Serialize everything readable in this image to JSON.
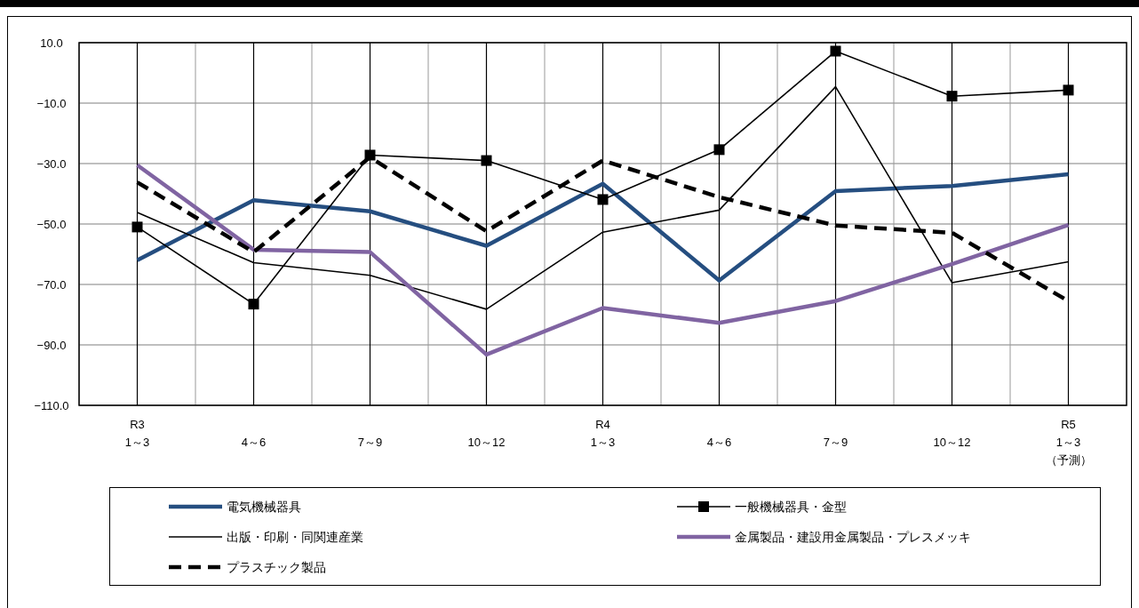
{
  "chart_data": {
    "type": "line",
    "categories": [
      "R3\n1～3",
      "4～6",
      "7～9",
      "10～12",
      "R4\n1～3",
      "4～6",
      "7～9",
      "10～12",
      "R5\n1～3\n（予測）"
    ],
    "ylim": [
      -110,
      10
    ],
    "yticks": [
      {
        "value": 10,
        "label": "10.0"
      },
      {
        "value": -10,
        "label": "−10.0"
      },
      {
        "value": -30,
        "label": "−30.0"
      },
      {
        "value": -50,
        "label": "−50.0"
      },
      {
        "value": -70,
        "label": "−70.0"
      },
      {
        "value": -90,
        "label": "−90.0"
      },
      {
        "value": -110,
        "label": "−110.0"
      }
    ],
    "grid": true,
    "legend": "bottom",
    "series": [
      {
        "name": "電気機械器具",
        "color": "#254e80",
        "values": [
          -62.0,
          -42.1,
          -45.8,
          -57.2,
          -36.7,
          -68.7,
          -39.1,
          -37.4,
          -33.5
        ]
      },
      {
        "name": "一般機械器具・金型",
        "color": "#000000",
        "marker": "square",
        "values": [
          -51.0,
          -76.5,
          -27.2,
          -29.0,
          -41.9,
          -25.4,
          7.2,
          -7.7,
          -5.7
        ]
      },
      {
        "name": "出版・印刷・同関連産業",
        "color": "#000000",
        "values": [
          -46.2,
          -62.8,
          -67.0,
          -78.2,
          -52.7,
          -45.4,
          -4.6,
          -69.4,
          -62.5
        ]
      },
      {
        "name": "金属製品・建設用金属製品・プレスメッキ",
        "color": "#8064a2",
        "values": [
          -30.5,
          -58.5,
          -59.3,
          -93.2,
          -77.8,
          -82.7,
          -75.5,
          -63.3,
          -50.3
        ]
      },
      {
        "name": "プラスチック製品",
        "color": "#000000",
        "line_style": "dashed",
        "values": [
          -36.2,
          -59.3,
          -27.9,
          -52.4,
          -29.0,
          -41.1,
          -50.5,
          -52.9,
          -75.5
        ]
      }
    ]
  }
}
